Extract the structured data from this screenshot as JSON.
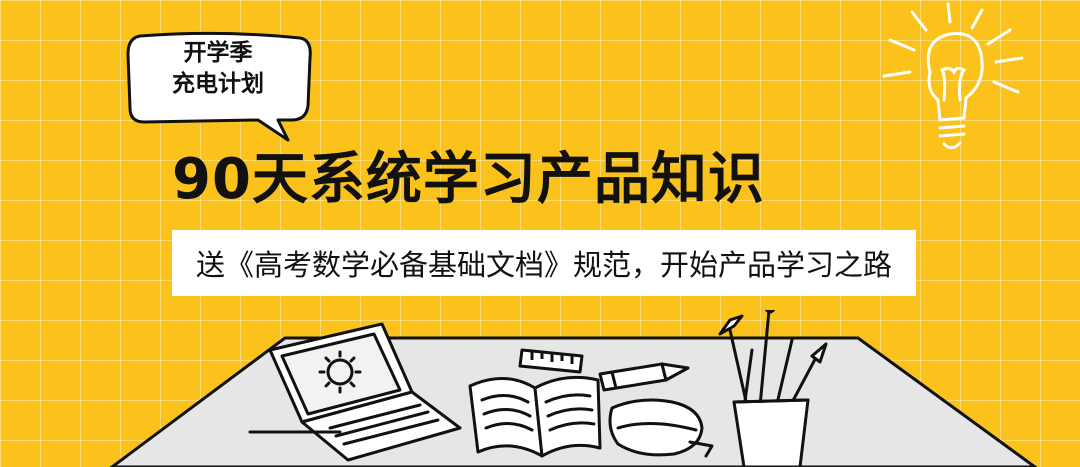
{
  "colors": {
    "background": "#FBC21C",
    "ink": "#111111",
    "panel": "#ffffff",
    "desk": "#E6E6E6"
  },
  "speech_bubble": {
    "line1": "开学季",
    "line2": "充电计划"
  },
  "title": "90天系统学习产品知识",
  "subtitle": "送《高考数学必备基础文档》规范，开始产品学习之路",
  "icons": [
    "speech-bubble-icon",
    "lightbulb-icon",
    "laptop-icon",
    "open-book-icon",
    "ruler-icon",
    "pencil-icon",
    "pencil-case-icon",
    "brush-holder-icon"
  ]
}
